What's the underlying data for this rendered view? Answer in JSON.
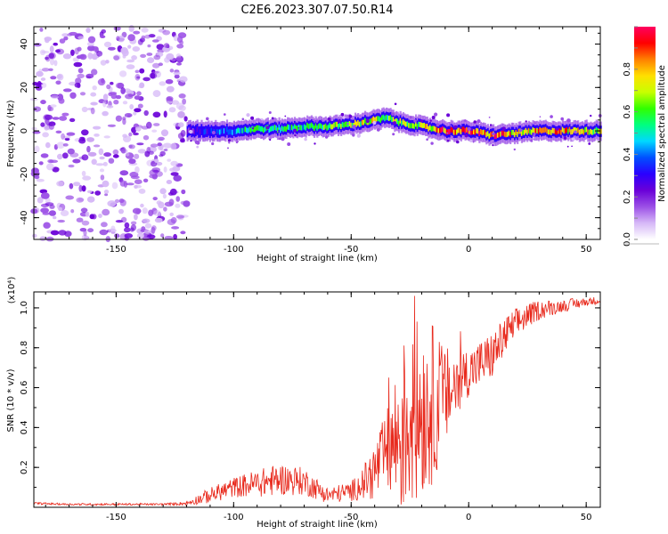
{
  "figure_title": "C2E6.2023.307.07.50.R14",
  "chart_data": [
    {
      "type": "heatmap",
      "xlabel": "Height of straight line (km)",
      "ylabel": "Frequency (Hz)",
      "xlim": [
        -185,
        56
      ],
      "ylim": [
        -50,
        48
      ],
      "xticks": [
        -150,
        -100,
        -50,
        0,
        50
      ],
      "yticks": [
        -40,
        -20,
        0,
        20,
        40
      ],
      "colorbar": {
        "label": "Normalized spectral amplitude",
        "range": [
          0,
          1
        ],
        "ticks": [
          "0.0",
          "0.2",
          "0.4",
          "0.6",
          "0.8"
        ],
        "colormap": [
          "#ffffff",
          "#d6b8f7",
          "#9b4fe6",
          "#6a00d8",
          "#2a00ff",
          "#0050ff",
          "#00d8ff",
          "#00ff80",
          "#30ff00",
          "#c8ff00",
          "#ffe000",
          "#ff8000",
          "#ff0000",
          "#ff0060"
        ]
      },
      "noise_region": {
        "x": [
          -185,
          -120
        ],
        "freq": [
          -50,
          48
        ],
        "amplitude": [
          0.05,
          0.25
        ]
      },
      "ridge": {
        "x": [
          -120,
          -110,
          -100,
          -90,
          -80,
          -70,
          -60,
          -50,
          -40,
          -35,
          -30,
          -20,
          -10,
          0,
          10,
          20,
          30,
          40,
          50,
          56
        ],
        "freq": [
          0,
          0,
          0,
          1,
          1,
          2,
          2,
          3,
          5,
          6,
          4,
          2,
          0,
          0,
          -2,
          -1,
          0,
          0,
          0,
          0
        ],
        "amplitude": [
          0.2,
          0.35,
          0.45,
          0.6,
          0.55,
          0.55,
          0.65,
          0.7,
          0.75,
          0.6,
          0.7,
          0.7,
          0.9,
          0.95,
          0.9,
          0.8,
          0.85,
          0.8,
          0.75,
          0.7
        ]
      }
    },
    {
      "type": "line",
      "xlabel": "Height of straight line (km)",
      "ylabel": "SNR (10 * v/v)",
      "y_multiplier": "(x10⁴)",
      "xlim": [
        -185,
        56
      ],
      "ylim": [
        0,
        1.08
      ],
      "xticks": [
        -150,
        -100,
        -50,
        0,
        50
      ],
      "yticks": [
        0.2,
        0.4,
        0.6,
        0.8,
        1.0
      ],
      "color": "#e8291c",
      "series": [
        {
          "x": [
            -185,
            -170,
            -150,
            -130,
            -120,
            -110,
            -100,
            -90,
            -80,
            -70,
            -60,
            -50,
            -45,
            -40,
            -35,
            -30,
            -25,
            -20,
            -15,
            -10,
            -5,
            0,
            5,
            10,
            15,
            20,
            25,
            30,
            35,
            40,
            45,
            50,
            56
          ],
          "values": [
            0.02,
            0.015,
            0.015,
            0.015,
            0.02,
            0.06,
            0.1,
            0.12,
            0.14,
            0.13,
            0.06,
            0.08,
            0.12,
            0.18,
            0.28,
            0.35,
            0.45,
            0.5,
            0.52,
            0.55,
            0.62,
            0.68,
            0.72,
            0.76,
            0.85,
            0.92,
            0.96,
            0.99,
            1.0,
            1.01,
            1.02,
            1.03,
            1.04
          ],
          "spread": [
            0.005,
            0.005,
            0.005,
            0.005,
            0.01,
            0.04,
            0.05,
            0.07,
            0.08,
            0.07,
            0.04,
            0.05,
            0.08,
            0.15,
            0.2,
            0.4,
            0.5,
            0.45,
            0.4,
            0.25,
            0.2,
            0.12,
            0.12,
            0.12,
            0.1,
            0.08,
            0.06,
            0.05,
            0.04,
            0.03,
            0.03,
            0.02,
            0.02
          ]
        }
      ]
    }
  ]
}
